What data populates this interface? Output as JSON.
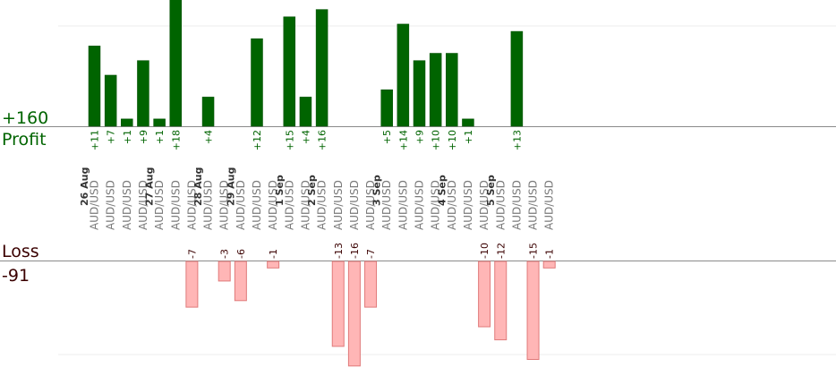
{
  "profit": {
    "label": "Profit",
    "total": "+160"
  },
  "loss": {
    "label": "Loss",
    "total": "-91"
  },
  "colors": {
    "profit_bar": "#006400",
    "loss_fill": "#ffb6b6",
    "loss_stroke": "#e07a7a",
    "axis": "#8a8a8a",
    "grid": "#eeeeee"
  },
  "chart_data": {
    "type": "bar",
    "ylim_profit": [
      0,
      18
    ],
    "ylim_loss": [
      0,
      16
    ],
    "trades": [
      {
        "value": 11,
        "pair": "AUD/USD",
        "date": "26 Aug"
      },
      {
        "value": 7,
        "pair": "AUD/USD"
      },
      {
        "value": 1,
        "pair": "AUD/USD"
      },
      {
        "value": 9,
        "pair": "AUD/USD"
      },
      {
        "value": 1,
        "pair": "AUD/USD",
        "date": "27 Aug"
      },
      {
        "value": 18,
        "pair": "AUD/USD"
      },
      {
        "value": -7,
        "pair": "AUD/USD"
      },
      {
        "value": 4,
        "pair": "AUD/USD",
        "date": "28 Aug"
      },
      {
        "value": -3,
        "pair": "AUD/USD"
      },
      {
        "value": -6,
        "pair": "AUD/USD",
        "date": "29 Aug"
      },
      {
        "value": 12,
        "pair": "AUD/USD"
      },
      {
        "value": -1,
        "pair": "AUD/USD"
      },
      {
        "value": 15,
        "pair": "AUD/USD",
        "date": "1 Sep"
      },
      {
        "value": 4,
        "pair": "AUD/USD"
      },
      {
        "value": 16,
        "pair": "AUD/USD",
        "date": "2 Sep"
      },
      {
        "value": -13,
        "pair": "AUD/USD"
      },
      {
        "value": -16,
        "pair": "AUD/USD"
      },
      {
        "value": -7,
        "pair": "AUD/USD"
      },
      {
        "value": 5,
        "pair": "AUD/USD",
        "date": "3 Sep"
      },
      {
        "value": 14,
        "pair": "AUD/USD"
      },
      {
        "value": 9,
        "pair": "AUD/USD"
      },
      {
        "value": 10,
        "pair": "AUD/USD"
      },
      {
        "value": 10,
        "pair": "AUD/USD",
        "date": "4 Sep"
      },
      {
        "value": 1,
        "pair": "AUD/USD"
      },
      {
        "value": -10,
        "pair": "AUD/USD"
      },
      {
        "value": -12,
        "pair": "AUD/USD",
        "date": "5 Sep"
      },
      {
        "value": 13,
        "pair": "AUD/USD"
      },
      {
        "value": -15,
        "pair": "AUD/USD"
      },
      {
        "value": -1,
        "pair": "AUD/USD"
      }
    ]
  }
}
